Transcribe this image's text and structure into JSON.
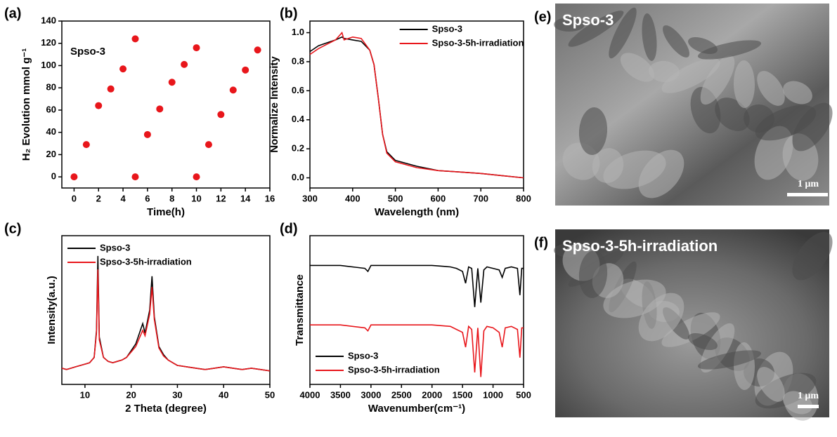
{
  "chart_data": [
    {
      "type": "scatter",
      "panel_label": "(a)",
      "annotation": "Spso-3",
      "xlabel": "Time(h)",
      "ylabel": "H₂ Evolution mmol g⁻¹",
      "xlim": [
        -1,
        16
      ],
      "ylim": [
        -10,
        140
      ],
      "xticks": [
        0,
        2,
        4,
        6,
        8,
        10,
        12,
        14,
        16
      ],
      "yticks": [
        0,
        20,
        40,
        60,
        80,
        100,
        120,
        140
      ],
      "x": [
        0,
        1,
        2,
        3,
        4,
        5,
        5,
        6,
        7,
        8,
        9,
        10,
        10,
        11,
        12,
        13,
        14,
        15
      ],
      "series": [
        {
          "color": "#e8161b",
          "values": [
            0,
            29,
            64,
            79,
            97,
            124,
            0,
            38,
            61,
            85,
            101,
            116,
            0,
            29,
            56,
            78,
            96,
            114
          ]
        }
      ]
    },
    {
      "type": "line",
      "panel_label": "(b)",
      "xlabel": "Wavelength (nm)",
      "ylabel": "Normalize Intensity",
      "legend": "upper right",
      "xlim": [
        300,
        800
      ],
      "ylim": [
        -0.07,
        1.08
      ],
      "xticks": [
        300,
        400,
        500,
        600,
        700,
        800
      ],
      "yticks": [
        {
          "value": 0,
          "label": "0.0"
        },
        {
          "value": 0.2,
          "label": "0.2"
        },
        {
          "value": 0.4,
          "label": "0.4"
        },
        {
          "value": 0.6,
          "label": "0.6"
        },
        {
          "value": 0.8,
          "label": "0.8"
        },
        {
          "value": 1,
          "label": "1.0"
        }
      ],
      "x": [
        300,
        320,
        340,
        360,
        375,
        380,
        400,
        420,
        440,
        450,
        460,
        470,
        480,
        500,
        550,
        600,
        650,
        700,
        750,
        800
      ],
      "series": [
        {
          "name": "Spso-3",
          "color": "#000000",
          "values": [
            0.87,
            0.91,
            0.93,
            0.95,
            0.97,
            0.96,
            0.95,
            0.94,
            0.88,
            0.78,
            0.55,
            0.3,
            0.18,
            0.12,
            0.08,
            0.05,
            0.04,
            0.03,
            0.015,
            0
          ]
        },
        {
          "name": "Spso-3-5h-irradiation",
          "color": "#e8161b",
          "values": [
            0.85,
            0.89,
            0.92,
            0.95,
            1.0,
            0.95,
            0.97,
            0.96,
            0.88,
            0.78,
            0.55,
            0.3,
            0.17,
            0.11,
            0.07,
            0.05,
            0.04,
            0.03,
            0.015,
            0
          ]
        }
      ]
    },
    {
      "type": "line",
      "panel_label": "(c)",
      "xlabel": "2 Theta (degree)",
      "ylabel": "Intensity(a.u.)",
      "legend": "upper left",
      "xlim": [
        5,
        50
      ],
      "ylim": [
        0,
        110
      ],
      "xticks": [
        10,
        20,
        30,
        40,
        50
      ],
      "x": [
        5,
        6,
        7,
        8,
        9,
        10,
        11,
        12,
        12.5,
        12.8,
        13.1,
        14,
        15,
        16,
        17,
        18,
        19,
        20,
        21,
        22,
        22.5,
        23,
        24,
        24.5,
        25,
        26,
        27,
        28,
        29,
        30,
        32,
        34,
        36,
        38,
        40,
        42,
        44,
        46,
        48,
        50
      ],
      "series": [
        {
          "name": "Spso-3",
          "color": "#000000",
          "values": [
            12,
            11,
            12,
            13,
            14,
            15,
            16,
            20,
            40,
            95,
            35,
            20,
            17,
            16,
            17,
            18,
            20,
            25,
            30,
            40,
            45,
            38,
            55,
            80,
            50,
            28,
            22,
            18,
            16,
            14,
            13,
            12,
            11,
            12,
            13,
            12,
            11,
            12,
            11,
            10
          ]
        },
        {
          "name": "Spso-3-5h-irradiation",
          "color": "#e8161b",
          "values": [
            12,
            11,
            12,
            13,
            14,
            15,
            16,
            20,
            38,
            85,
            33,
            20,
            17,
            16,
            17,
            18,
            20,
            24,
            28,
            36,
            40,
            36,
            52,
            72,
            48,
            27,
            21,
            18,
            16,
            14,
            13,
            12,
            11,
            12,
            13,
            12,
            11,
            12,
            11,
            10
          ]
        }
      ]
    },
    {
      "type": "line",
      "panel_label": "(d)",
      "xlabel": "Wavenumber(cm⁻¹)",
      "ylabel": "Transmittance",
      "legend": "lower left",
      "xlim": [
        4000,
        500
      ],
      "ylim": [
        0,
        100
      ],
      "xticks": [
        4000,
        3500,
        3000,
        2500,
        2000,
        1500,
        1000,
        500
      ],
      "x": [
        4000,
        3500,
        3100,
        3050,
        3000,
        2000,
        1700,
        1600,
        1500,
        1450,
        1400,
        1350,
        1300,
        1250,
        1200,
        1150,
        1100,
        1000,
        900,
        850,
        800,
        700,
        600,
        560,
        530,
        500
      ],
      "series": [
        {
          "name": "Spso-3",
          "color": "#000000",
          "values": [
            80,
            80,
            78,
            76,
            80,
            80,
            79,
            78,
            76,
            68,
            79,
            78,
            52,
            78,
            55,
            77,
            79,
            78,
            77,
            72,
            78,
            79,
            78,
            60,
            78,
            78
          ]
        },
        {
          "name": "Spso-3-5h-irradiation",
          "color": "#e8161b",
          "values": [
            40,
            40,
            38,
            36,
            40,
            40,
            39,
            37,
            35,
            25,
            39,
            37,
            8,
            38,
            5,
            36,
            39,
            38,
            35,
            25,
            38,
            39,
            37,
            18,
            38,
            38
          ]
        }
      ]
    }
  ],
  "images": [
    {
      "panel_label": "(e)",
      "caption": "Spso-3",
      "scale": "1 μm"
    },
    {
      "panel_label": "(f)",
      "caption": "Spso-3-5h-irradiation",
      "scale": "1 μm"
    }
  ]
}
